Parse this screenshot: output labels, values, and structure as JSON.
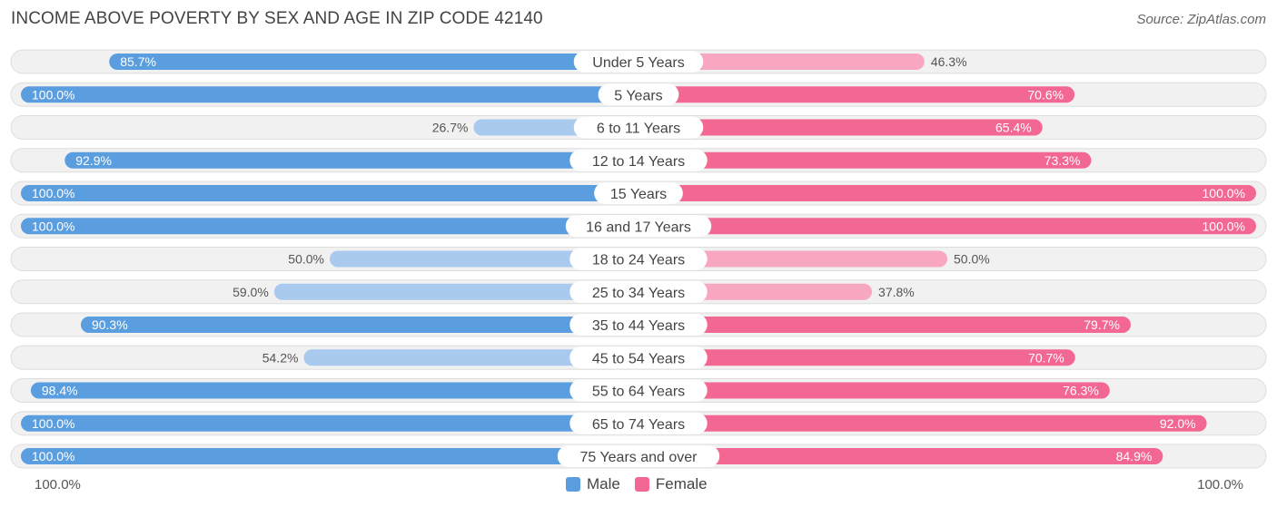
{
  "title": "INCOME ABOVE POVERTY BY SEX AND AGE IN ZIP CODE 42140",
  "source": "Source: ZipAtlas.com",
  "colors": {
    "male_dark": "#5b9ee0",
    "male_light": "#a9c9ee",
    "female_dark": "#f26893",
    "female_light": "#f7a7c0",
    "track": "#f1f1f1",
    "track_border": "#dddddd"
  },
  "chart_data": {
    "type": "bar",
    "orientation": "horizontal-diverging",
    "categories": [
      "Under 5 Years",
      "5 Years",
      "6 to 11 Years",
      "12 to 14 Years",
      "15 Years",
      "16 and 17 Years",
      "18 to 24 Years",
      "25 to 34 Years",
      "35 to 44 Years",
      "45 to 54 Years",
      "55 to 64 Years",
      "65 to 74 Years",
      "75 Years and over"
    ],
    "series": [
      {
        "name": "Male",
        "values": [
          85.7,
          100.0,
          26.7,
          92.9,
          100.0,
          100.0,
          50.0,
          59.0,
          90.3,
          54.2,
          98.4,
          100.0,
          100.0
        ],
        "labels": [
          "85.7%",
          "100.0%",
          "26.7%",
          "92.9%",
          "100.0%",
          "100.0%",
          "50.0%",
          "59.0%",
          "90.3%",
          "54.2%",
          "98.4%",
          "100.0%",
          "100.0%"
        ]
      },
      {
        "name": "Female",
        "values": [
          46.3,
          70.6,
          65.4,
          73.3,
          100.0,
          100.0,
          50.0,
          37.8,
          79.7,
          70.7,
          76.3,
          92.0,
          84.9
        ],
        "labels": [
          "46.3%",
          "70.6%",
          "65.4%",
          "73.3%",
          "100.0%",
          "100.0%",
          "50.0%",
          "37.8%",
          "79.7%",
          "70.7%",
          "76.3%",
          "92.0%",
          "84.9%"
        ]
      }
    ],
    "xlim": [
      0,
      100
    ],
    "axis_left_label": "100.0%",
    "axis_right_label": "100.0%",
    "legend": [
      "Male",
      "Female"
    ],
    "legend_position": "bottom-center"
  }
}
